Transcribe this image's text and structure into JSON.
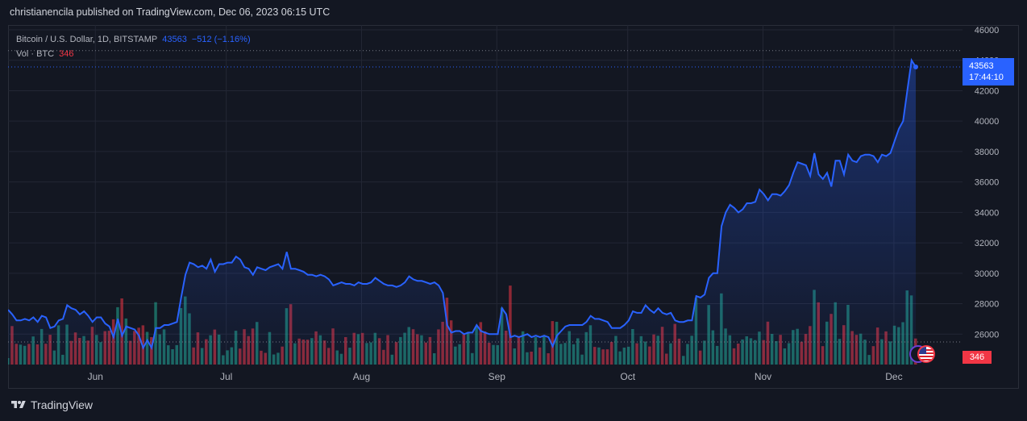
{
  "header": {
    "published": "christianencila published on TradingView.com, Dec 06, 2023 06:15 UTC"
  },
  "legend": {
    "symbol": "Bitcoin / U.S. Dollar, 1D, BITSTAMP",
    "last": "43563",
    "change": "−512 (−1.16%)",
    "vol_label": "Vol · BTC",
    "vol_value": "346"
  },
  "price_tag": {
    "price": "43563",
    "countdown": "17:44:10"
  },
  "vol_tag": "346",
  "footer": {
    "brand": "TradingView"
  },
  "colors": {
    "line": "#2962ff",
    "up_volume": "#22ab94",
    "down_volume": "#f23645",
    "background": "#131722"
  },
  "chart_data": {
    "type": "line",
    "title": "Bitcoin / U.S. Dollar, 1D, BITSTAMP",
    "x_ticks": [
      "Jun",
      "Jul",
      "Aug",
      "Sep",
      "Oct",
      "Nov",
      "Dec"
    ],
    "y_ticks": [
      "46000",
      "44000",
      "42000",
      "40000",
      "38000",
      "36000",
      "34000",
      "32000",
      "30000",
      "28000",
      "26000"
    ],
    "ylim": [
      24000,
      46000
    ],
    "grid": true,
    "series": [
      {
        "name": "Bitcoin / U.S. Dollar",
        "x_start": "2023-05-12",
        "x_end": "2023-12-06",
        "values": [
          27600,
          27300,
          26900,
          26900,
          27000,
          26900,
          27100,
          26800,
          27200,
          27100,
          26400,
          26500,
          26900,
          27000,
          27900,
          27700,
          27600,
          27300,
          27500,
          27200,
          26800,
          27100,
          27100,
          26700,
          26500,
          25800,
          27000,
          25900,
          26500,
          26400,
          26300,
          25900,
          25100,
          25600,
          25100,
          26400,
          26400,
          26600,
          26600,
          26700,
          26800,
          28400,
          29900,
          30700,
          30600,
          30400,
          30500,
          30300,
          30900,
          30100,
          30600,
          30600,
          30700,
          30700,
          31100,
          30900,
          30400,
          30300,
          29900,
          30400,
          30300,
          30200,
          30400,
          30500,
          30600,
          30300,
          31400,
          30300,
          30300,
          30200,
          30100,
          29900,
          29900,
          29800,
          29900,
          29800,
          29600,
          29200,
          29300,
          29400,
          29300,
          29300,
          29200,
          29400,
          29300,
          29300,
          29400,
          29700,
          29500,
          29300,
          29200,
          29200,
          29100,
          29200,
          29400,
          29800,
          29600,
          29500,
          29500,
          29400,
          29300,
          29400,
          29200,
          28700,
          26600,
          26100,
          26200,
          26200,
          26000,
          26100,
          26100,
          26600,
          26200,
          26100,
          26000,
          26000,
          26000,
          27700,
          27300,
          25800,
          25900,
          25800,
          25900,
          26000,
          25800,
          25900,
          25800,
          25900,
          25800,
          25200,
          25900,
          26200,
          26500,
          26600,
          26600,
          26600,
          26600,
          26800,
          27200,
          27000,
          27000,
          26900,
          26800,
          26400,
          26400,
          26400,
          26600,
          26900,
          27500,
          27400,
          27400,
          27900,
          27600,
          27400,
          27700,
          27400,
          27300,
          27400,
          26900,
          26800,
          26800,
          26900,
          26900,
          28500,
          28400,
          28600,
          29700,
          30000,
          30000,
          33100,
          34000,
          34500,
          34300,
          34000,
          34200,
          34600,
          34600,
          34700,
          35500,
          35200,
          34800,
          35200,
          35200,
          35100,
          35400,
          35800,
          36600,
          37300,
          37200,
          37100,
          36400,
          37900,
          36500,
          36200,
          36600,
          35700,
          37400,
          37400,
          36500,
          37800,
          37400,
          37300,
          37700,
          37800,
          37800,
          37700,
          37300,
          37800,
          37700,
          37900,
          38700,
          39500,
          40000,
          42000,
          44000,
          43563
        ]
      }
    ],
    "volume": {
      "name": "Vol · BTC",
      "last": 346
    }
  }
}
